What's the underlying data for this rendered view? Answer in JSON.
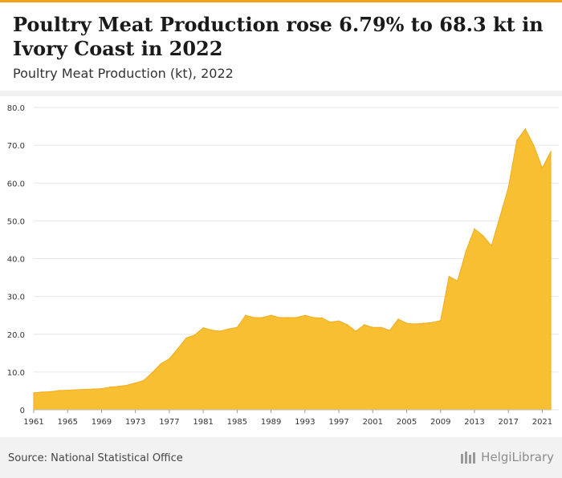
{
  "header": {
    "title": "Poultry Meat Production rose 6.79% to 68.3 kt in Ivory Coast in 2022",
    "subtitle": "Poultry Meat Production (kt), 2022"
  },
  "footer": {
    "source": "Source: National Statistical Office",
    "logo_text": "HelgiLibrary"
  },
  "colors": {
    "area_fill": "#f9bf33",
    "area_stroke": "#f0ad1e",
    "accent": "#f5a31a",
    "grid": "#e6e6e6",
    "axis_text": "#333333"
  },
  "chart_data": {
    "type": "area",
    "title": "Poultry Meat Production (kt), 2022",
    "xlabel": "",
    "ylabel": "",
    "x": [
      1961,
      1962,
      1963,
      1964,
      1965,
      1966,
      1967,
      1968,
      1969,
      1970,
      1971,
      1972,
      1973,
      1974,
      1975,
      1976,
      1977,
      1978,
      1979,
      1980,
      1981,
      1982,
      1983,
      1984,
      1985,
      1986,
      1987,
      1988,
      1989,
      1990,
      1991,
      1992,
      1993,
      1994,
      1995,
      1996,
      1997,
      1998,
      1999,
      2000,
      2001,
      2002,
      2003,
      2004,
      2005,
      2006,
      2007,
      2008,
      2009,
      2010,
      2011,
      2012,
      2013,
      2014,
      2015,
      2016,
      2017,
      2018,
      2019,
      2020,
      2021,
      2022
    ],
    "values": [
      4.5,
      4.7,
      4.8,
      5.1,
      5.2,
      5.3,
      5.4,
      5.5,
      5.6,
      6.0,
      6.2,
      6.5,
      7.1,
      7.8,
      9.9,
      12.2,
      13.5,
      16.2,
      19.0,
      19.8,
      21.7,
      21.1,
      20.8,
      21.4,
      21.8,
      25.0,
      24.4,
      24.4,
      25.0,
      24.4,
      24.4,
      24.4,
      25.0,
      24.4,
      24.3,
      23.2,
      23.5,
      22.5,
      20.8,
      22.5,
      21.8,
      21.8,
      21.0,
      24.0,
      22.9,
      22.7,
      22.9,
      23.1,
      23.6,
      35.3,
      34.1,
      42.0,
      47.9,
      46.1,
      43.4,
      51.0,
      58.8,
      71.3,
      74.3,
      69.9,
      64.0,
      68.3
    ],
    "ylim": [
      0,
      80
    ],
    "yticks": [
      0,
      10,
      20,
      30,
      40,
      50,
      60,
      70,
      80
    ],
    "ytick_labels": [
      "0",
      "10.0",
      "20.0",
      "30.0",
      "40.0",
      "50.0",
      "60.0",
      "70.0",
      "80.0"
    ],
    "xticks": [
      1961,
      1965,
      1969,
      1973,
      1977,
      1981,
      1985,
      1989,
      1993,
      1997,
      2001,
      2005,
      2009,
      2013,
      2017,
      2021
    ],
    "grid": true,
    "legend": "none"
  }
}
